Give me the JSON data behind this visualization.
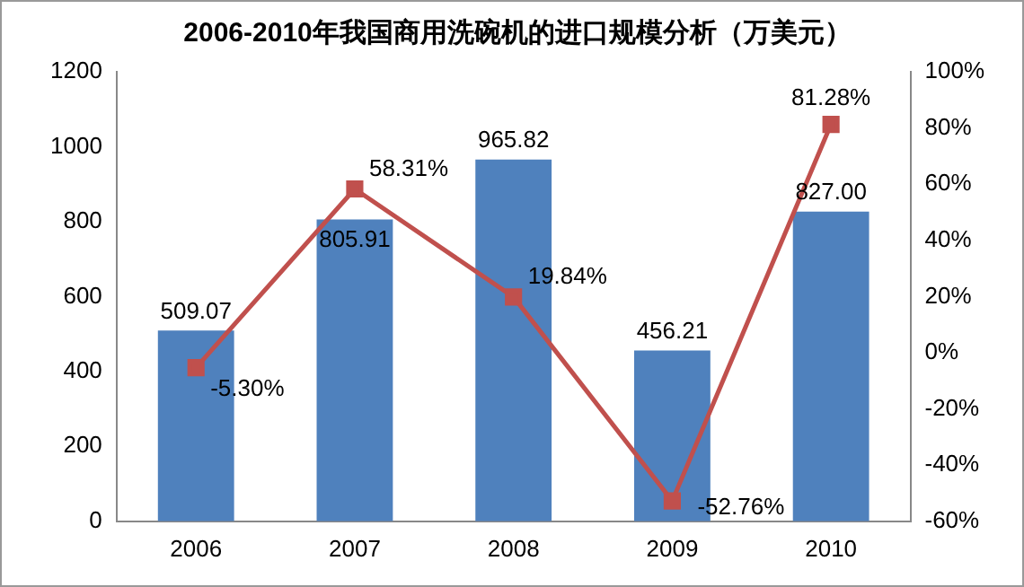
{
  "chart_data": {
    "type": "bar",
    "title": "2006-2010年我国商用洗碗机的进口规模分析（万美元）",
    "categories": [
      "2006",
      "2007",
      "2008",
      "2009",
      "2010"
    ],
    "series": [
      {
        "color": "#4f81bd",
        "values": [
          509.07,
          805.91,
          965.82,
          456.21,
          827.0
        ],
        "value_labels": [
          "509.07",
          "805.91",
          "965.82",
          "456.21",
          "827.00"
        ]
      },
      {
        "type": "line",
        "axis": "y2",
        "color": "#c0504d",
        "marker": "square",
        "values": [
          -5.3,
          58.31,
          19.84,
          -52.76,
          81.28
        ],
        "value_labels": [
          "-5.30%",
          "58.31%",
          "19.84%",
          "-52.76%",
          "81.28%"
        ]
      }
    ],
    "ylim": [
      0,
      1200
    ],
    "yticks": [
      0,
      200,
      400,
      600,
      800,
      1000,
      1200
    ],
    "y2lim": [
      -60,
      100
    ],
    "y2ticks": [
      {
        "value": -60,
        "label": "-60%"
      },
      {
        "value": -40,
        "label": "-40%"
      },
      {
        "value": -20,
        "label": "-20%"
      },
      {
        "value": 0,
        "label": "0%"
      },
      {
        "value": 20,
        "label": "20%"
      },
      {
        "value": 40,
        "label": "40%"
      },
      {
        "value": 60,
        "label": "60%"
      },
      {
        "value": 80,
        "label": "80%"
      },
      {
        "value": 100,
        "label": "100%"
      }
    ],
    "grid": false,
    "legend": false
  }
}
